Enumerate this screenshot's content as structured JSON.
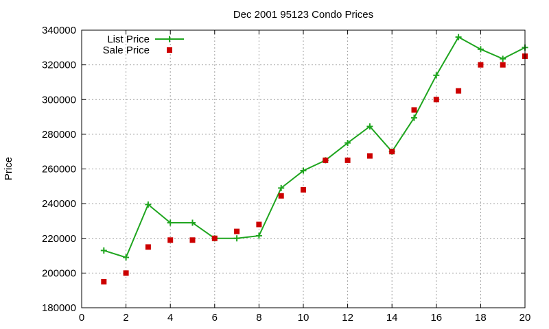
{
  "chart_data": {
    "type": "line",
    "title": "Dec 2001 95123 Condo Prices",
    "xlabel": "",
    "ylabel": "Price",
    "xlim": [
      0,
      20
    ],
    "ylim": [
      180000,
      340000
    ],
    "xticks": [
      0,
      2,
      4,
      6,
      8,
      10,
      12,
      14,
      16,
      18,
      20
    ],
    "yticks": [
      180000,
      200000,
      220000,
      240000,
      260000,
      280000,
      300000,
      320000,
      340000
    ],
    "grid": true,
    "legend_position": "top-left",
    "series": [
      {
        "name": "List Price",
        "style": "line+cross",
        "color": "#1fa51f",
        "x": [
          1,
          2,
          3,
          4,
          5,
          6,
          7,
          8,
          9,
          10,
          11,
          12,
          13,
          14,
          15,
          16,
          17,
          18,
          19,
          20
        ],
        "values": [
          213000,
          209000,
          239500,
          229000,
          229000,
          220000,
          220000,
          221500,
          249000,
          259000,
          265000,
          275000,
          284500,
          270000,
          289500,
          314000,
          336000,
          329000,
          323500,
          330000
        ]
      },
      {
        "name": "Sale Price",
        "style": "square-points",
        "color": "#cc0000",
        "x": [
          1,
          2,
          3,
          4,
          5,
          6,
          7,
          8,
          9,
          10,
          11,
          12,
          13,
          14,
          15,
          16,
          17,
          18,
          19,
          20
        ],
        "values": [
          195000,
          200000,
          215000,
          219000,
          219000,
          220000,
          224000,
          228000,
          244500,
          248000,
          265000,
          265000,
          267500,
          270000,
          294000,
          300000,
          305000,
          320000,
          320000,
          325000
        ]
      }
    ]
  }
}
